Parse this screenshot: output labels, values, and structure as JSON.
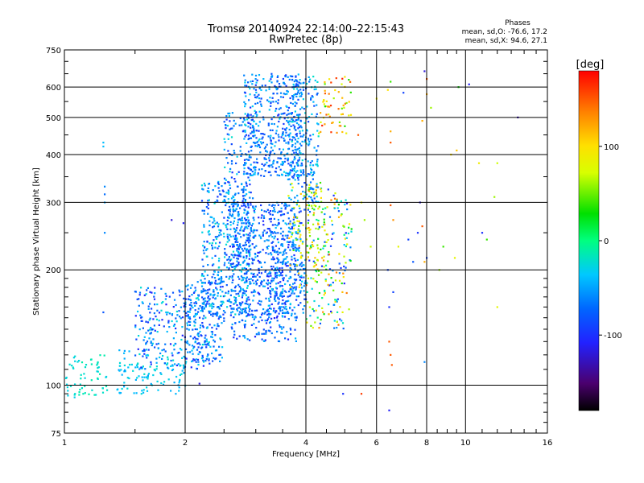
{
  "chart_data": {
    "type": "scatter",
    "title": "Tromsø 20140924 22:14:00–22:15:43",
    "subtitle": "RwPretec (8p)",
    "xlabel": "Frequency [MHz]",
    "ylabel": "Stationary phase Virtual Height [km]",
    "x_scale": "log",
    "y_scale": "log",
    "xlim": [
      1,
      16
    ],
    "ylim": [
      75,
      750
    ],
    "x_ticks": [
      1,
      2,
      4,
      6,
      8,
      10,
      16
    ],
    "x_tick_labels": [
      "1",
      "2",
      "4",
      "6",
      "8",
      "10",
      "16"
    ],
    "y_ticks": [
      75,
      100,
      200,
      300,
      400,
      500,
      600,
      750
    ],
    "y_tick_labels": [
      "75",
      "100",
      "200",
      "300",
      "400",
      "500",
      "600",
      "750"
    ],
    "grid": true,
    "stats": {
      "heading": "Phases",
      "line1": "mean, sd,O: -76.6, 17.2",
      "line2": "mean, sd,X:  94.6, 27.1"
    },
    "colorbar": {
      "label": "[deg]",
      "range": [
        -180,
        180
      ],
      "ticks": [
        100,
        0,
        -100
      ],
      "tick_labels": [
        "100",
        "0",
        "-100"
      ]
    },
    "clusters": [
      {
        "f": [
          1.0,
          1.3
        ],
        "h": [
          94,
          120
        ],
        "ph": [
          -30,
          -10
        ],
        "n": 60
      },
      {
        "f": [
          1.35,
          2.0
        ],
        "h": [
          95,
          125
        ],
        "ph": [
          -50,
          -20
        ],
        "n": 120
      },
      {
        "f": [
          1.5,
          2.3
        ],
        "h": [
          110,
          180
        ],
        "ph": [
          -110,
          -20
        ],
        "n": 260
      },
      {
        "f": [
          2.0,
          2.5
        ],
        "h": [
          115,
          190
        ],
        "ph": [
          -100,
          -30
        ],
        "n": 180
      },
      {
        "f": [
          2.2,
          2.9
        ],
        "h": [
          150,
          340
        ],
        "ph": [
          -100,
          -20
        ],
        "n": 420
      },
      {
        "f": [
          2.5,
          3.0
        ],
        "h": [
          200,
          520
        ],
        "ph": [
          -100,
          -20
        ],
        "n": 220
      },
      {
        "f": [
          2.6,
          3.8
        ],
        "h": [
          130,
          300
        ],
        "ph": [
          -110,
          -40
        ],
        "n": 520
      },
      {
        "f": [
          2.8,
          3.9
        ],
        "h": [
          350,
          650
        ],
        "ph": [
          -100,
          -30
        ],
        "n": 460
      },
      {
        "f": [
          3.2,
          4.0
        ],
        "h": [
          150,
          300
        ],
        "ph": [
          -100,
          -30
        ],
        "n": 260
      },
      {
        "f": [
          3.6,
          4.3
        ],
        "h": [
          300,
          640
        ],
        "ph": [
          -90,
          -20
        ],
        "n": 220
      },
      {
        "f": [
          4.0,
          5.2
        ],
        "h": [
          140,
          330
        ],
        "ph": [
          -110,
          150
        ],
        "n": 220
      },
      {
        "f": [
          4.3,
          5.2
        ],
        "h": [
          450,
          640
        ],
        "ph": [
          30,
          170
        ],
        "n": 60
      },
      {
        "f": [
          3.6,
          4.6
        ],
        "h": [
          180,
          340
        ],
        "ph": [
          40,
          120
        ],
        "n": 80
      }
    ],
    "points": [
      {
        "f": 1.25,
        "h": 430,
        "ph": -40
      },
      {
        "f": 1.25,
        "h": 420,
        "ph": -40
      },
      {
        "f": 1.26,
        "h": 330,
        "ph": -60
      },
      {
        "f": 1.26,
        "h": 315,
        "ph": -70
      },
      {
        "f": 1.26,
        "h": 300,
        "ph": -50
      },
      {
        "f": 1.26,
        "h": 250,
        "ph": -60
      },
      {
        "f": 1.25,
        "h": 155,
        "ph": -80
      },
      {
        "f": 1.85,
        "h": 270,
        "ph": -120
      },
      {
        "f": 1.98,
        "h": 265,
        "ph": -110
      },
      {
        "f": 1.02,
        "h": 94,
        "ph": -30
      },
      {
        "f": 1.06,
        "h": 93,
        "ph": -30
      },
      {
        "f": 2.17,
        "h": 101,
        "ph": -120
      },
      {
        "f": 4.95,
        "h": 95,
        "ph": -100
      },
      {
        "f": 5.5,
        "h": 95,
        "ph": 160
      },
      {
        "f": 6.45,
        "h": 86,
        "ph": -110
      },
      {
        "f": 6.45,
        "h": 130,
        "ph": 150
      },
      {
        "f": 6.5,
        "h": 120,
        "ph": 150
      },
      {
        "f": 6.55,
        "h": 113,
        "ph": 150
      },
      {
        "f": 6.45,
        "h": 160,
        "ph": -100
      },
      {
        "f": 6.6,
        "h": 175,
        "ph": -90
      },
      {
        "f": 6.5,
        "h": 295,
        "ph": 150
      },
      {
        "f": 6.6,
        "h": 270,
        "ph": 130
      },
      {
        "f": 6.4,
        "h": 200,
        "ph": -90
      },
      {
        "f": 6.8,
        "h": 230,
        "ph": 80
      },
      {
        "f": 6.5,
        "h": 430,
        "ph": 150
      },
      {
        "f": 6.5,
        "h": 460,
        "ph": 120
      },
      {
        "f": 6.4,
        "h": 590,
        "ph": 100
      },
      {
        "f": 6.5,
        "h": 620,
        "ph": 40
      },
      {
        "f": 7.0,
        "h": 580,
        "ph": -90
      },
      {
        "f": 7.2,
        "h": 240,
        "ph": -90
      },
      {
        "f": 7.4,
        "h": 210,
        "ph": -80
      },
      {
        "f": 7.6,
        "h": 250,
        "ph": -100
      },
      {
        "f": 7.8,
        "h": 260,
        "ph": 150
      },
      {
        "f": 7.7,
        "h": 300,
        "ph": -120
      },
      {
        "f": 7.9,
        "h": 210,
        "ph": 120
      },
      {
        "f": 8.0,
        "h": 215,
        "ph": -90
      },
      {
        "f": 7.9,
        "h": 115,
        "ph": -60
      },
      {
        "f": 8.0,
        "h": 575,
        "ph": 120
      },
      {
        "f": 7.9,
        "h": 660,
        "ph": -120
      },
      {
        "f": 8.0,
        "h": 630,
        "ph": 150
      },
      {
        "f": 7.8,
        "h": 490,
        "ph": 120
      },
      {
        "f": 8.2,
        "h": 530,
        "ph": 60
      },
      {
        "f": 8.6,
        "h": 200,
        "ph": 60
      },
      {
        "f": 8.8,
        "h": 230,
        "ph": 40
      },
      {
        "f": 9.2,
        "h": 400,
        "ph": 100
      },
      {
        "f": 9.5,
        "h": 410,
        "ph": 110
      },
      {
        "f": 9.4,
        "h": 215,
        "ph": 80
      },
      {
        "f": 9.6,
        "h": 600,
        "ph": 30
      },
      {
        "f": 10.2,
        "h": 610,
        "ph": -110
      },
      {
        "f": 11.0,
        "h": 250,
        "ph": -100
      },
      {
        "f": 11.3,
        "h": 240,
        "ph": 40
      },
      {
        "f": 10.8,
        "h": 380,
        "ph": 90
      },
      {
        "f": 12.0,
        "h": 380,
        "ph": 70
      },
      {
        "f": 11.8,
        "h": 310,
        "ph": 60
      },
      {
        "f": 12.0,
        "h": 160,
        "ph": 80
      },
      {
        "f": 13.5,
        "h": 500,
        "ph": -130
      },
      {
        "f": 5.6,
        "h": 270,
        "ph": 60
      },
      {
        "f": 5.8,
        "h": 230,
        "ph": 70
      },
      {
        "f": 5.5,
        "h": 300,
        "ph": 80
      },
      {
        "f": 5.4,
        "h": 450,
        "ph": 150
      },
      {
        "f": 6.0,
        "h": 560,
        "ph": 90
      }
    ]
  }
}
